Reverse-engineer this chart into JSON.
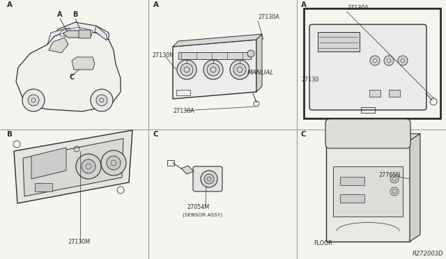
{
  "bg_color": "#f5f5f0",
  "line_color": "#2a2a2a",
  "grid_line_color": "#999999",
  "ref_number": "R272003D",
  "labels": {
    "top_left": "A",
    "top_left_A": "A",
    "top_left_B": "B",
    "top_left_C": "C",
    "top_mid": "A",
    "top_mid_manual": "MANUAL",
    "top_mid_27130A_top": "27130A",
    "top_mid_27130N": "27130N",
    "top_mid_27130A_bot": "27130A",
    "top_right": "A",
    "top_right_27130": "27130",
    "top_right_27130A": "27130A",
    "bot_left": "B",
    "bot_left_27130M": "27130M",
    "bot_mid": "C",
    "bot_mid_27054M": "27054M",
    "bot_mid_sensor": "(SENSOR ASSY)",
    "bot_right": "C",
    "bot_right_27765N": "27765N",
    "bot_right_floor": "FLOOR"
  },
  "font_sizes": {
    "section_label": 7.5,
    "part_ref": 5.8,
    "manual_text": 6.5,
    "ref_number": 6.0
  },
  "grid": {
    "vx1": 213,
    "vx2": 426,
    "hy": 186
  }
}
